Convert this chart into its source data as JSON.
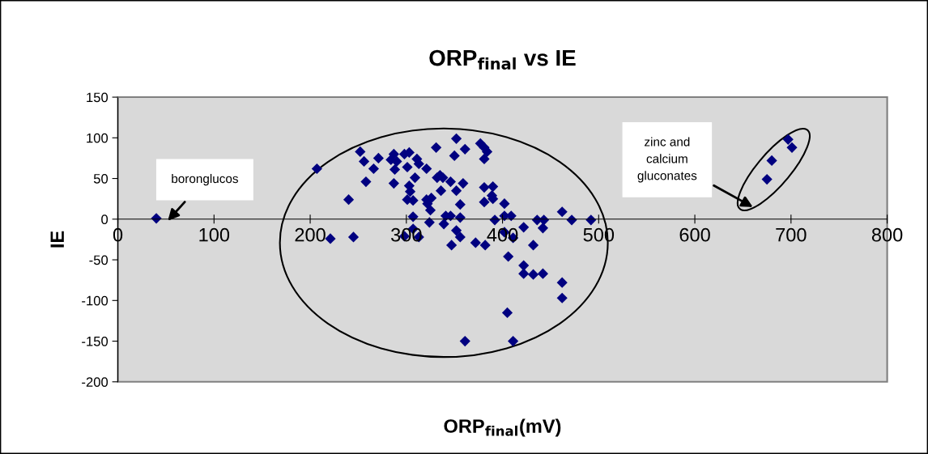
{
  "chart_data": {
    "type": "scatter",
    "title": "ORP$_{final}$ vs IE",
    "xlabel": "ORP$_{final}$(mV)",
    "ylabel": "IE",
    "x": [
      40,
      207,
      221,
      240,
      245,
      252,
      256,
      271,
      266,
      258,
      287,
      284,
      290,
      288,
      298,
      303,
      301,
      311,
      313,
      321,
      309,
      287,
      303,
      304,
      301,
      307,
      321,
      326,
      322,
      325,
      307,
      307,
      298,
      313,
      324,
      331,
      335,
      338,
      332,
      346,
      336,
      352,
      359,
      356,
      341,
      346,
      356,
      339,
      352,
      356,
      347,
      352,
      350,
      361,
      377,
      381,
      384,
      381,
      381,
      390,
      389,
      381,
      390,
      402,
      392,
      372,
      382,
      402,
      409,
      402,
      411,
      406,
      422,
      432,
      436,
      443,
      442,
      422,
      422,
      432,
      442,
      462,
      472,
      492,
      462,
      462,
      361,
      405,
      411,
      697,
      701,
      680,
      675
    ],
    "values": [
      1,
      62,
      -24,
      24,
      -22,
      83,
      71,
      75,
      62,
      46,
      80,
      73,
      71,
      61,
      80,
      82,
      64,
      74,
      68,
      62,
      51,
      44,
      41,
      34,
      24,
      23,
      24,
      26,
      19,
      11,
      3,
      -12,
      -21,
      -22,
      -4,
      88,
      54,
      51,
      51,
      46,
      35,
      35,
      44,
      18,
      4,
      4,
      2,
      -6,
      -14,
      -22,
      -32,
      99,
      78,
      86,
      93,
      88,
      83,
      74,
      39,
      40,
      29,
      21,
      25,
      19,
      -1,
      -29,
      -32,
      4,
      4,
      -16,
      -23,
      -46,
      -10,
      -32,
      -1,
      -1,
      -11,
      -57,
      -67,
      -68,
      -67,
      9,
      -1,
      -1,
      -78,
      -97,
      -150,
      -115,
      -150,
      98,
      88,
      72,
      49
    ],
    "color": "#000080",
    "marker": "diamond",
    "xlim": [
      0,
      800
    ],
    "xticks": [
      0,
      100,
      200,
      300,
      400,
      500,
      600,
      700,
      800
    ],
    "ylim": [
      -200,
      150
    ],
    "yticks": [
      -200,
      -150,
      -100,
      -50,
      0,
      50,
      100,
      150
    ],
    "grid": false,
    "legend": false,
    "annotations": [
      "boronglucos",
      "zinc and\ncalcium\ngluconates"
    ]
  }
}
